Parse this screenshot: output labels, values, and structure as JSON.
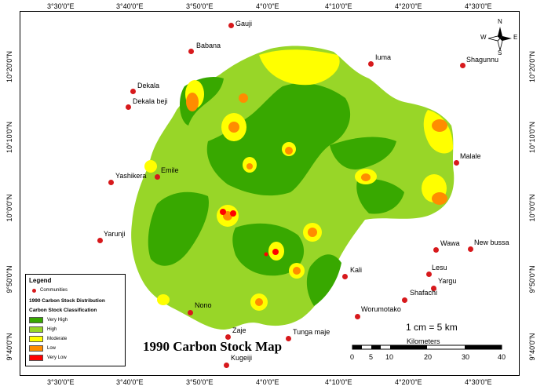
{
  "map": {
    "title": "1990 Carbon Stock  Map",
    "scale_text": "1 cm = 5 km",
    "scale_unit": "Kilometers",
    "scale_numbers": [
      "0",
      "5",
      "10",
      "20",
      "30",
      "40"
    ],
    "north_arrow": {
      "n": "N",
      "s": "S",
      "e": "E",
      "w": "W"
    },
    "longitude_ticks": [
      "3°30'0\"E",
      "3°40'0\"E",
      "3°50'0\"E",
      "4°0'0\"E",
      "4°10'0\"E",
      "4°20'0\"E",
      "4°30'0\"E"
    ],
    "latitude_ticks": [
      "10°20'0\"N",
      "10°10'0\"N",
      "10°0'0\"N",
      "9°50'0\"N",
      "9°40'0\"N"
    ]
  },
  "communities": [
    {
      "name": "Gauji"
    },
    {
      "name": "Babana"
    },
    {
      "name": "Iuma"
    },
    {
      "name": "Shagunnu"
    },
    {
      "name": "Dekala"
    },
    {
      "name": "Dekala beji"
    },
    {
      "name": "Yashikera"
    },
    {
      "name": "Emile"
    },
    {
      "name": "Malale"
    },
    {
      "name": "Yarunji"
    },
    {
      "name": "Wawa"
    },
    {
      "name": "New bussa"
    },
    {
      "name": "Lesu"
    },
    {
      "name": "Kali"
    },
    {
      "name": "Yargu"
    },
    {
      "name": "Shafachi"
    },
    {
      "name": "Worumotako"
    },
    {
      "name": "Nono"
    },
    {
      "name": "Zaje"
    },
    {
      "name": "Tunga maje"
    },
    {
      "name": "Kugeiji"
    }
  ],
  "legend": {
    "title": "Legend",
    "communities_label": "Communities",
    "distribution_title": "1990 Carbon Stock Distribution",
    "classification_title": "Carbon Stock Classification",
    "classes": [
      {
        "label": "Very High",
        "color": "#38a800"
      },
      {
        "label": "High",
        "color": "#98d628"
      },
      {
        "label": "Moderate",
        "color": "#ffff00"
      },
      {
        "label": "Low",
        "color": "#ff8c00"
      },
      {
        "label": "Very Low",
        "color": "#ff0000"
      }
    ]
  }
}
